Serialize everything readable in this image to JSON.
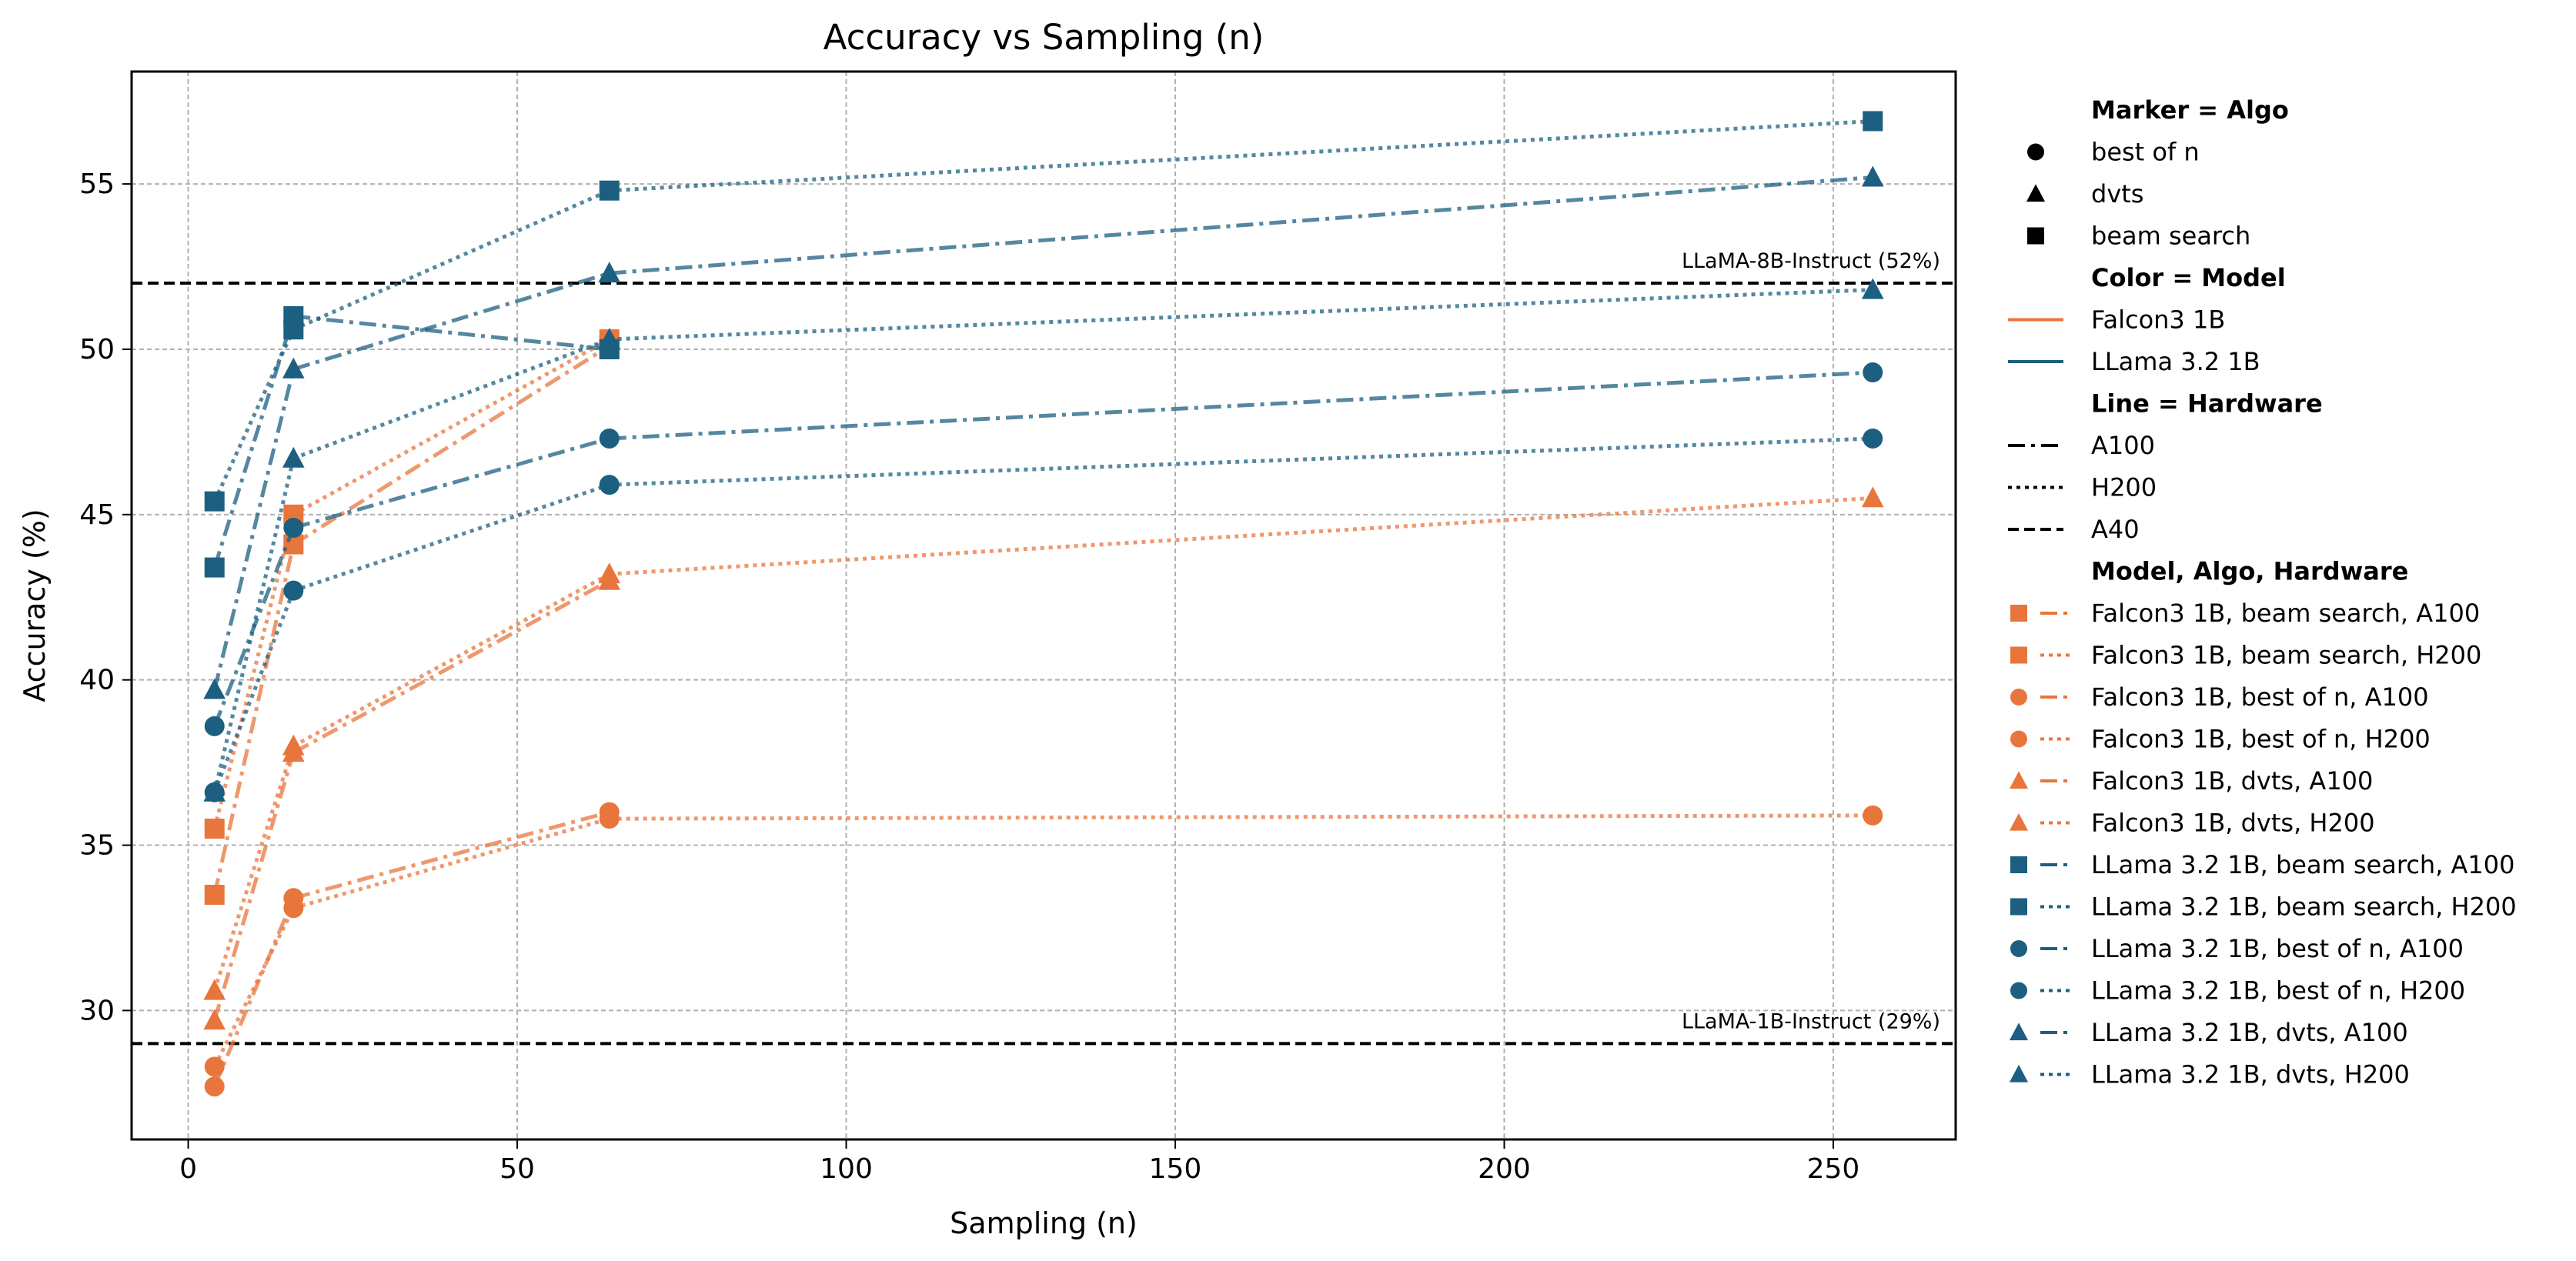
{
  "chart_data": {
    "type": "line",
    "title": "Accuracy vs Sampling (n)",
    "xlabel": "Sampling (n)",
    "ylabel": "Accuracy (%)",
    "xlim": [
      -8.6,
      268.6
    ],
    "ylim": [
      26.1,
      58.4
    ],
    "xticks": [
      0,
      50,
      100,
      150,
      200,
      250
    ],
    "yticks": [
      30,
      35,
      40,
      45,
      50,
      55
    ],
    "grid": true,
    "legend_position": "outside-right",
    "x": [
      4,
      16,
      64,
      256
    ],
    "reference_lines": [
      {
        "label": "LLaMA-8B-Instruct (52%)",
        "value": 52
      },
      {
        "label": "LLaMA-1B-Instruct (29%)",
        "value": 29
      }
    ],
    "colors": {
      "Falcon3 1B": "#e8763c",
      "LLama 3.2 1B": "#1c5f80"
    },
    "series": [
      {
        "name": "Falcon3 1B, beam search, A100",
        "model": "Falcon3 1B",
        "marker": "square",
        "line": "A100",
        "values": [
          33.5,
          44.1,
          50.1,
          null
        ]
      },
      {
        "name": "Falcon3 1B, beam search, H200",
        "model": "Falcon3 1B",
        "marker": "square",
        "line": "H200",
        "values": [
          35.5,
          45.0,
          50.3,
          null
        ]
      },
      {
        "name": "Falcon3 1B, best of n, A100",
        "model": "Falcon3 1B",
        "marker": "circle",
        "line": "A100",
        "values": [
          27.7,
          33.4,
          36.0,
          null
        ]
      },
      {
        "name": "Falcon3 1B, best of n, H200",
        "model": "Falcon3 1B",
        "marker": "circle",
        "line": "H200",
        "values": [
          28.3,
          33.1,
          35.8,
          35.9
        ]
      },
      {
        "name": "Falcon3 1B, dvts, A100",
        "model": "Falcon3 1B",
        "marker": "triangle",
        "line": "A100",
        "values": [
          29.7,
          37.8,
          43.0,
          null
        ]
      },
      {
        "name": "Falcon3 1B, dvts, H200",
        "model": "Falcon3 1B",
        "marker": "triangle",
        "line": "H200",
        "values": [
          30.6,
          38.0,
          43.2,
          45.5
        ]
      },
      {
        "name": "LLama 3.2 1B, beam search, A100",
        "model": "LLama 3.2 1B",
        "marker": "square",
        "line": "A100",
        "values": [
          43.4,
          51.0,
          50.0,
          null
        ]
      },
      {
        "name": "LLama 3.2 1B, beam search, H200",
        "model": "LLama 3.2 1B",
        "marker": "square",
        "line": "H200",
        "values": [
          45.4,
          50.6,
          54.8,
          56.9
        ]
      },
      {
        "name": "LLama 3.2 1B, best of n, A100",
        "model": "LLama 3.2 1B",
        "marker": "circle",
        "line": "A100",
        "values": [
          38.6,
          44.6,
          47.3,
          49.3
        ]
      },
      {
        "name": "LLama 3.2 1B, best of n, H200",
        "model": "LLama 3.2 1B",
        "marker": "circle",
        "line": "H200",
        "values": [
          36.6,
          42.7,
          45.9,
          47.3
        ]
      },
      {
        "name": "LLama 3.2 1B, dvts, A100",
        "model": "LLama 3.2 1B",
        "marker": "triangle",
        "line": "A100",
        "values": [
          39.7,
          49.4,
          52.3,
          55.2
        ]
      },
      {
        "name": "LLama 3.2 1B, dvts, H200",
        "model": "LLama 3.2 1B",
        "marker": "triangle",
        "line": "H200",
        "values": [
          36.6,
          46.7,
          50.3,
          51.8
        ]
      }
    ],
    "legend": {
      "marker_section": {
        "title": "Marker = Algo",
        "items": [
          {
            "label": "best of n",
            "marker": "circle"
          },
          {
            "label": "dvts",
            "marker": "triangle"
          },
          {
            "label": "beam search",
            "marker": "square"
          }
        ]
      },
      "color_section": {
        "title": "Color = Model",
        "items": [
          {
            "label": "Falcon3 1B",
            "color": "#e8763c"
          },
          {
            "label": "LLama 3.2 1B",
            "color": "#1c5f80"
          }
        ]
      },
      "line_section": {
        "title": "Line = Hardware",
        "items": [
          {
            "label": "A100",
            "line": "A100"
          },
          {
            "label": "H200",
            "line": "H200"
          },
          {
            "label": "A40",
            "line": "A40"
          }
        ]
      },
      "combo_section": {
        "title": "Model, Algo, Hardware"
      }
    }
  }
}
